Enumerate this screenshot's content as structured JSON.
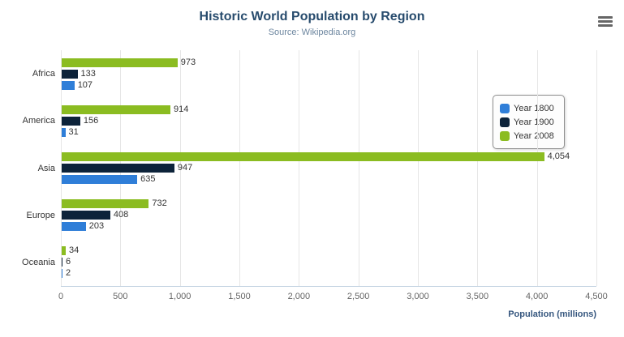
{
  "chart_data": {
    "type": "bar",
    "title": "Historic World Population by Region",
    "subtitle": "Source: Wikipedia.org",
    "categories": [
      "Africa",
      "America",
      "Asia",
      "Europe",
      "Oceania"
    ],
    "series": [
      {
        "name": "Year 1800",
        "color": "#2f7ed8",
        "values": [
          107,
          31,
          635,
          203,
          2
        ]
      },
      {
        "name": "Year 1900",
        "color": "#0d233a",
        "values": [
          133,
          156,
          947,
          408,
          6
        ]
      },
      {
        "name": "Year 2008",
        "color": "#8bbc21",
        "values": [
          973,
          914,
          4054,
          732,
          34
        ]
      }
    ],
    "xlabel": "Population (millions)",
    "xlim": [
      0,
      4500
    ],
    "xticks": [
      0,
      500,
      1000,
      1500,
      2000,
      2500,
      3000,
      3500,
      4000,
      4500
    ],
    "legend_position": "right",
    "grid": true,
    "bar_display_order_top_to_bottom": [
      "Year 2008",
      "Year 1900",
      "Year 1800"
    ]
  },
  "menu": {
    "icon": "hamburger-menu"
  }
}
